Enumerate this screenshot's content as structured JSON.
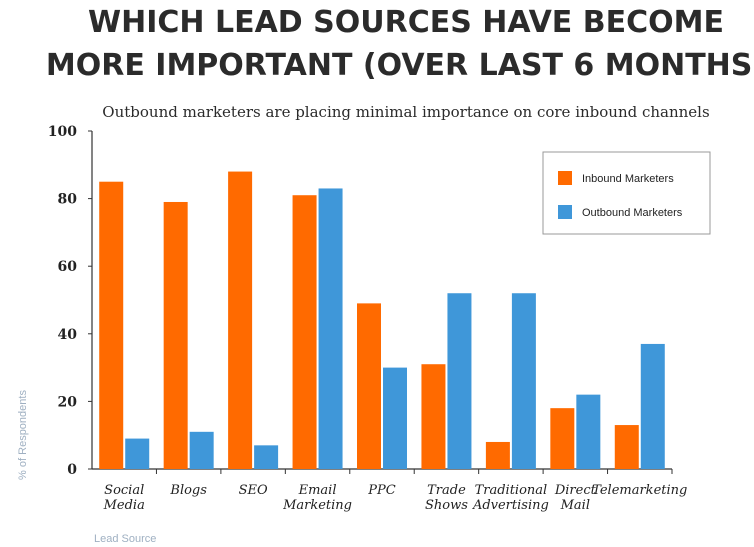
{
  "chart_data": {
    "type": "bar",
    "title_lines": [
      "WHICH LEAD SOURCES HAVE BECOME",
      "MORE IMPORTANT (OVER LAST 6 MONTHS)"
    ],
    "subtitle": "Outbound marketers are placing minimal importance on core inbound channels",
    "xlabel": "Lead Source",
    "ylabel": "% of Respondents",
    "ylim": [
      0,
      100
    ],
    "yticks": [
      0,
      20,
      40,
      60,
      80,
      100
    ],
    "categories": [
      [
        "Social",
        "Media"
      ],
      [
        "Blogs"
      ],
      [
        "SEO"
      ],
      [
        "Email",
        "Marketing"
      ],
      [
        "PPC"
      ],
      [
        "Trade",
        "Shows"
      ],
      [
        "Traditional",
        "Advertising"
      ],
      [
        "Direct",
        "Mail"
      ],
      [
        "Telemarketing"
      ]
    ],
    "series": [
      {
        "name": "Inbound Marketers",
        "color": "#ff6a00",
        "values": [
          85,
          79,
          88,
          81,
          49,
          31,
          8,
          18,
          13
        ]
      },
      {
        "name": "Outbound Marketers",
        "color": "#3f97d9",
        "values": [
          9,
          11,
          7,
          83,
          30,
          52,
          52,
          22,
          37
        ]
      }
    ],
    "legend_position": "top-right"
  }
}
